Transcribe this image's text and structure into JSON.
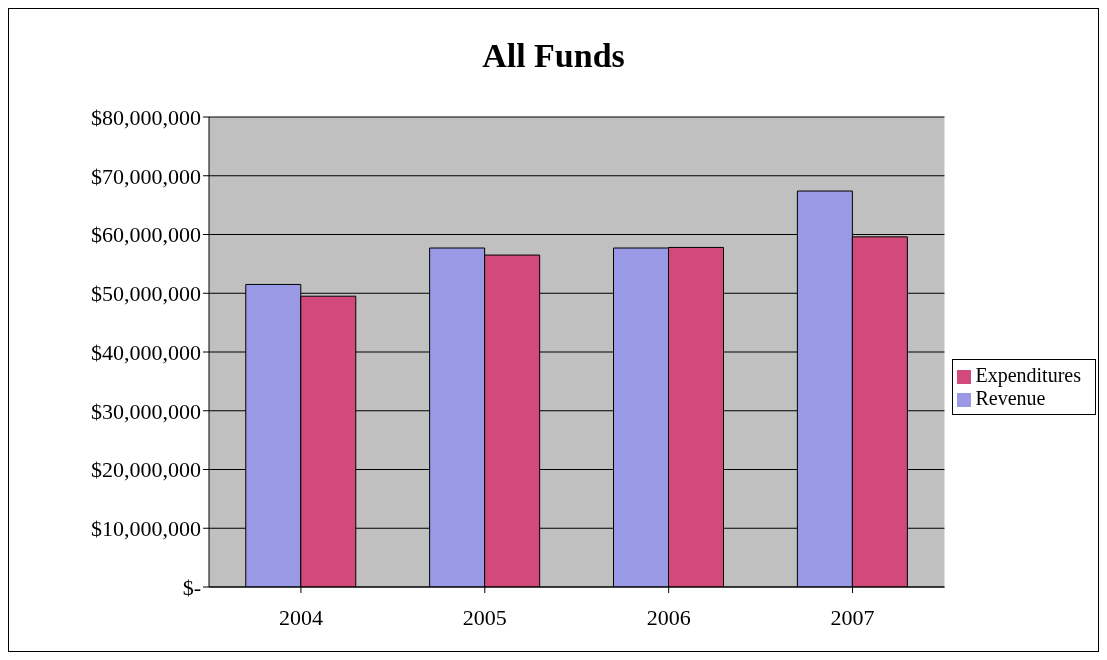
{
  "chart_data": {
    "type": "bar",
    "title": "All Funds",
    "categories": [
      "2004",
      "2005",
      "2006",
      "2007"
    ],
    "series": [
      {
        "name": "Revenue",
        "color": "#9999e6",
        "values": [
          51500000,
          57700000,
          57700000,
          67400000
        ]
      },
      {
        "name": "Expenditures",
        "color": "#d24a7c",
        "values": [
          49500000,
          56500000,
          57800000,
          59600000
        ]
      }
    ],
    "ylim": [
      0,
      80000000
    ],
    "yticks": [
      {
        "value": 0,
        "label": "$-"
      },
      {
        "value": 10000000,
        "label": "$10,000,000"
      },
      {
        "value": 20000000,
        "label": "$20,000,000"
      },
      {
        "value": 30000000,
        "label": "$30,000,000"
      },
      {
        "value": 40000000,
        "label": "$40,000,000"
      },
      {
        "value": 50000000,
        "label": "$50,000,000"
      },
      {
        "value": 60000000,
        "label": "$60,000,000"
      },
      {
        "value": 70000000,
        "label": "$70,000,000"
      },
      {
        "value": 80000000,
        "label": "$80,000,000"
      }
    ],
    "grid": "y",
    "legend": "right"
  }
}
